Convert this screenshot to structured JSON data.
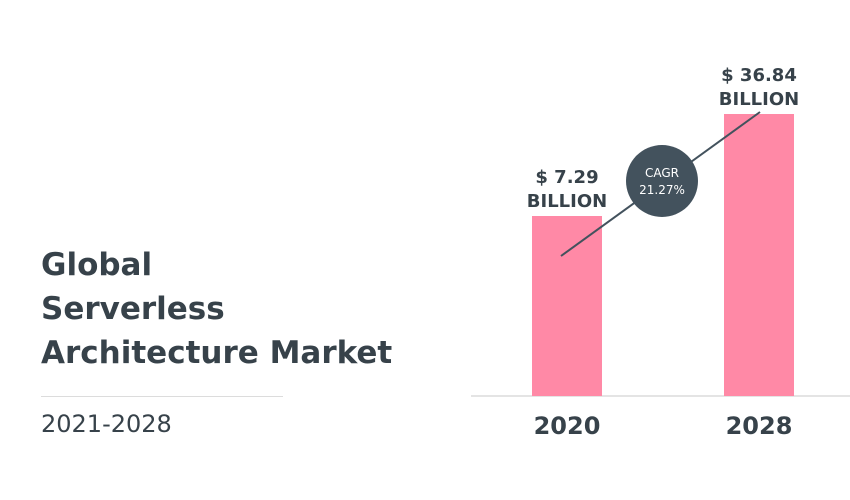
{
  "title_lines": [
    "Global",
    "Serverless",
    "Architecture Market"
  ],
  "period": "2021-2028",
  "colors": {
    "bar": "#ff89a6",
    "text": "#37424a",
    "badge": "#43525d",
    "rule": "#dcdcdc"
  },
  "chart_data": {
    "type": "bar",
    "categories": [
      "2020",
      "2028"
    ],
    "values": [
      7.29,
      36.84
    ],
    "value_labels": [
      [
        "$ 7.29",
        "BILLION"
      ],
      [
        "$ 36.84",
        "BILLION"
      ]
    ],
    "annotation": {
      "line1": "CAGR",
      "line2": "21.27%"
    }
  }
}
